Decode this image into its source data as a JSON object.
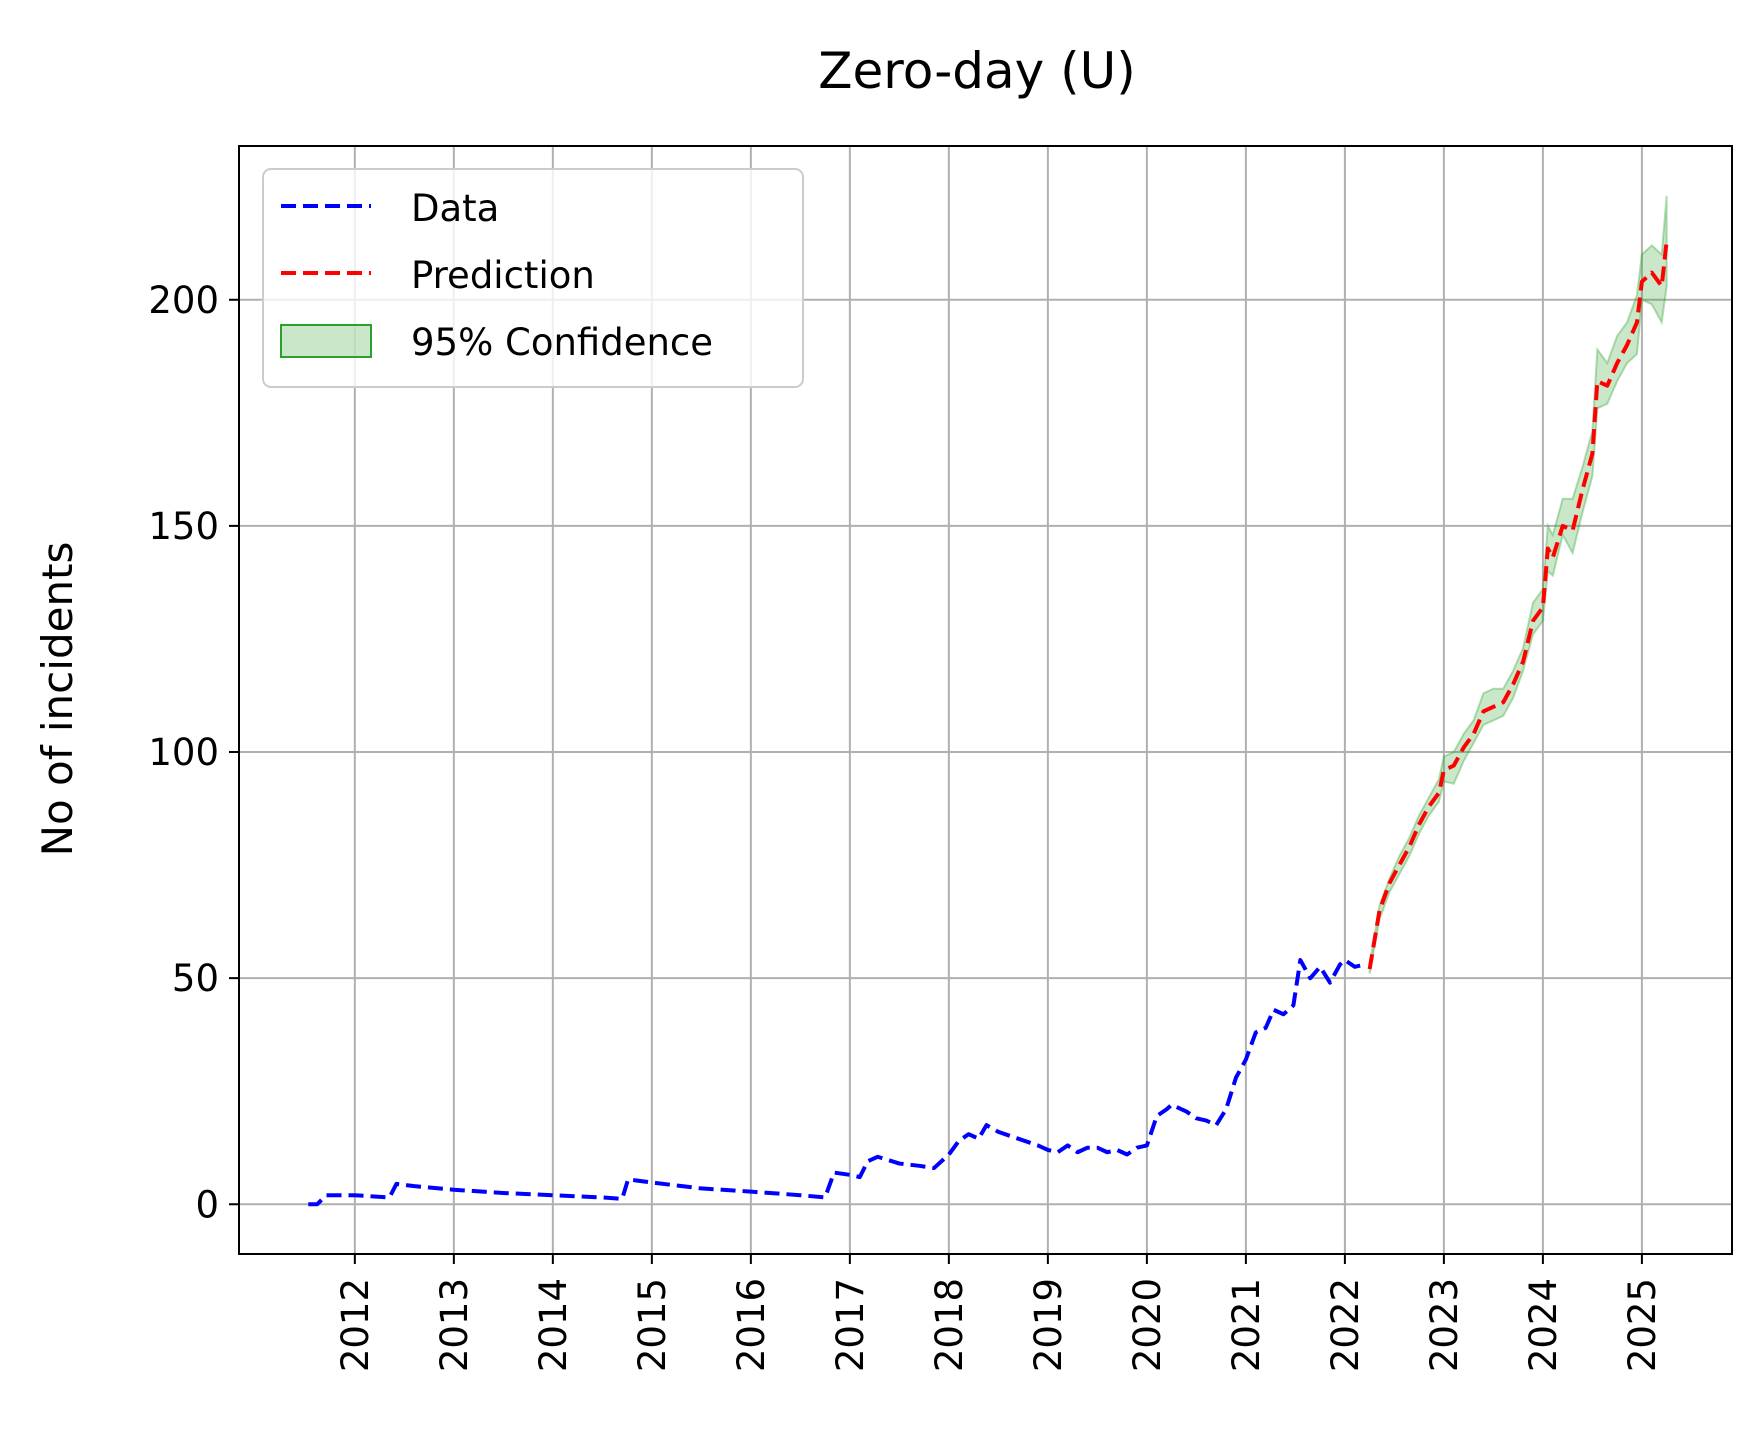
{
  "chart_data": {
    "type": "line",
    "title": "Zero-day (U)",
    "xlabel": "",
    "ylabel": "No of incidents",
    "xlim": [
      2010.83,
      2025.91
    ],
    "ylim": [
      -11,
      234
    ],
    "x_ticks": [
      2012,
      2013,
      2014,
      2015,
      2016,
      2017,
      2018,
      2019,
      2020,
      2021,
      2022,
      2023,
      2024,
      2025
    ],
    "y_ticks": [
      0,
      50,
      100,
      150,
      200
    ],
    "grid": true,
    "legend_position": "upper left",
    "colors": {
      "data": "#0000ff",
      "prediction": "#ff0000",
      "confidence": "#2ca02c"
    },
    "series": [
      {
        "name": "Data",
        "style": "dashed",
        "x": [
          2011.53,
          2011.62,
          2011.71,
          2012.0,
          2012.35,
          2012.42,
          2012.6,
          2013.0,
          2013.5,
          2014.0,
          2014.5,
          2014.7,
          2014.76,
          2015.0,
          2015.5,
          2016.0,
          2016.5,
          2016.75,
          2016.84,
          2017.0,
          2017.1,
          2017.18,
          2017.28,
          2017.5,
          2017.7,
          2017.85,
          2018.0,
          2018.1,
          2018.2,
          2018.3,
          2018.38,
          2018.5,
          2018.7,
          2018.9,
          2019.0,
          2019.1,
          2019.2,
          2019.3,
          2019.4,
          2019.5,
          2019.6,
          2019.7,
          2019.8,
          2019.9,
          2020.0,
          2020.1,
          2020.2,
          2020.25,
          2020.4,
          2020.5,
          2020.6,
          2020.7,
          2020.8,
          2020.9,
          2021.0,
          2021.05,
          2021.1,
          2021.2,
          2021.28,
          2021.38,
          2021.48,
          2021.55,
          2021.65,
          2021.75,
          2021.85,
          2021.95,
          2022.0,
          2022.1,
          2022.2
        ],
        "y": [
          0,
          0,
          2,
          2,
          1.5,
          4.5,
          4,
          3.2,
          2.5,
          2,
          1.5,
          1.2,
          5.5,
          4.8,
          3.5,
          2.8,
          2,
          1.5,
          7,
          6.5,
          6,
          9.5,
          10.5,
          9,
          8.5,
          8,
          11,
          14,
          15.5,
          14.5,
          17.5,
          16,
          14.5,
          13,
          12,
          11.5,
          13,
          11.5,
          12.5,
          12.5,
          11.5,
          12,
          11,
          12.5,
          13,
          19.5,
          21,
          22,
          20.5,
          19,
          18.5,
          17.5,
          21,
          28,
          32,
          35,
          38,
          39,
          43,
          42,
          44,
          54,
          50,
          52.5,
          49,
          53,
          54,
          52.5,
          53
        ]
      },
      {
        "name": "Prediction",
        "style": "dashed",
        "x": [
          2022.25,
          2022.35,
          2022.45,
          2022.55,
          2022.65,
          2022.75,
          2022.85,
          2022.95,
          2023.0,
          2023.1,
          2023.2,
          2023.3,
          2023.4,
          2023.5,
          2023.6,
          2023.7,
          2023.8,
          2023.9,
          2024.0,
          2024.05,
          2024.1,
          2024.2,
          2024.3,
          2024.4,
          2024.5,
          2024.55,
          2024.65,
          2024.75,
          2024.85,
          2024.95,
          2025.0,
          2025.1,
          2025.2,
          2025.25
        ],
        "y": [
          52,
          65,
          71,
          75,
          79,
          84,
          88,
          91,
          96,
          97,
          101,
          104,
          109,
          110,
          111,
          115,
          120,
          129,
          132,
          145,
          143,
          150,
          149,
          158,
          166,
          182,
          181,
          186,
          190,
          195,
          204,
          206,
          203,
          213
        ]
      }
    ],
    "confidence_band": {
      "name": "95% Confidence",
      "x": [
        2022.25,
        2022.35,
        2022.45,
        2022.55,
        2022.65,
        2022.75,
        2022.85,
        2022.95,
        2023.0,
        2023.1,
        2023.2,
        2023.3,
        2023.4,
        2023.5,
        2023.6,
        2023.7,
        2023.8,
        2023.9,
        2024.0,
        2024.05,
        2024.1,
        2024.2,
        2024.3,
        2024.4,
        2024.5,
        2024.55,
        2024.65,
        2024.75,
        2024.85,
        2024.95,
        2025.0,
        2025.1,
        2025.2,
        2025.25
      ],
      "lower": [
        51,
        63,
        69,
        73,
        77,
        82,
        86,
        89,
        93.5,
        93,
        98,
        102,
        106,
        107,
        108,
        112,
        118,
        126,
        129,
        140,
        139,
        148,
        144,
        153,
        161,
        176,
        177,
        182,
        186,
        188,
        200,
        199,
        195,
        203
      ],
      "upper": [
        53,
        66,
        72,
        77,
        81,
        86,
        90,
        94,
        99,
        100,
        104,
        107,
        113,
        114,
        114,
        118,
        123,
        133,
        136,
        150,
        148,
        156,
        156,
        163,
        171,
        189,
        186,
        192,
        195,
        201,
        210,
        212,
        210,
        223
      ]
    }
  }
}
